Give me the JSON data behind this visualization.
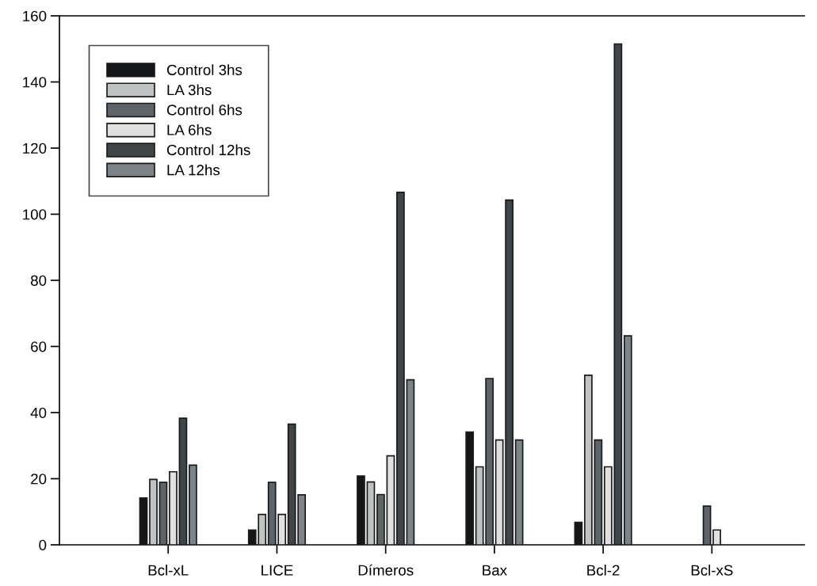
{
  "chart_data": {
    "type": "bar",
    "categories": [
      "Bcl-xL",
      "LICE",
      "Dímeros",
      "Bax",
      "Bcl-2",
      "Bcl-xS"
    ],
    "series": [
      {
        "name": "Control 3hs",
        "color": "#141617",
        "values": [
          14.2,
          4.5,
          20.8,
          34.1,
          6.8,
          null
        ]
      },
      {
        "name": "LA 3hs",
        "color": "#c0c3c3",
        "values": [
          19.8,
          9.2,
          19.0,
          23.6,
          51.3,
          null
        ]
      },
      {
        "name": "Control 6hs",
        "color": "#5e6467",
        "values": [
          18.9,
          18.9,
          15.2,
          50.3,
          31.7,
          11.7
        ]
      },
      {
        "name": "LA 6hs",
        "color": "#e0e0e0",
        "values": [
          22.1,
          9.2,
          26.9,
          31.7,
          23.6,
          4.5
        ]
      },
      {
        "name": "Control 12hs",
        "color": "#404548",
        "values": [
          38.3,
          36.5,
          106.6,
          104.3,
          151.5,
          null
        ]
      },
      {
        "name": "LA 12hs",
        "color": "#7d8487",
        "values": [
          24.1,
          15.1,
          49.9,
          31.7,
          63.2,
          null
        ]
      }
    ],
    "ylim": [
      0,
      160
    ],
    "yticks": [
      0,
      20,
      40,
      60,
      80,
      100,
      120,
      140,
      160
    ],
    "grid": false,
    "legend": "top left"
  }
}
